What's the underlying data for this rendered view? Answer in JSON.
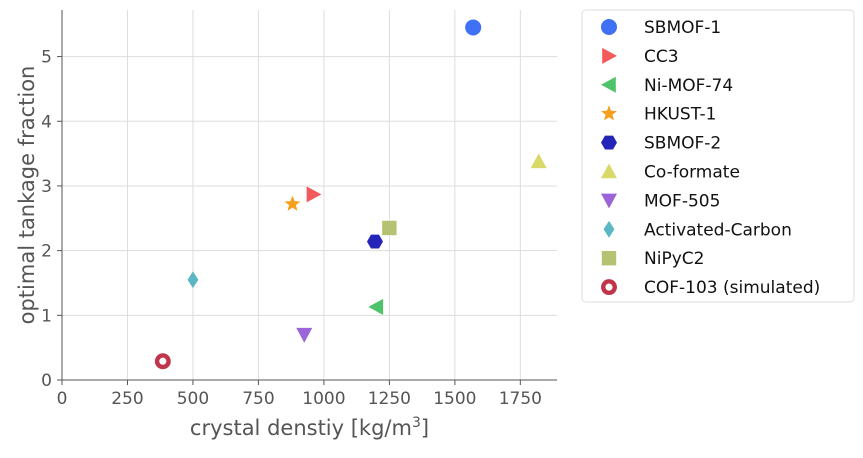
{
  "chart_data": {
    "type": "scatter",
    "title": "",
    "xlabel": "crystal denstiy [kg/m",
    "xlabel_sup": "3",
    "xlabel_end": "]",
    "ylabel": "optimal tankage fraction",
    "xlim": [
      0,
      1890
    ],
    "ylim": [
      0,
      5.72
    ],
    "xticks": [
      0,
      250,
      500,
      750,
      1000,
      1250,
      1500,
      1750
    ],
    "yticks": [
      0,
      1,
      2,
      3,
      4,
      5
    ],
    "xtick_labels": [
      "0",
      "250",
      "500",
      "750",
      "1000",
      "1250",
      "1500",
      "1750"
    ],
    "ytick_labels": [
      "0",
      "1",
      "2",
      "3",
      "4",
      "5"
    ],
    "grid": true,
    "legend_position": "outside-right",
    "series": [
      {
        "name": "SBMOF-1",
        "x": 1570,
        "y": 5.45,
        "marker": "circle",
        "color": "#4070f4"
      },
      {
        "name": "CC3",
        "x": 960,
        "y": 2.87,
        "marker": "triangle-right",
        "color": "#f25b5b"
      },
      {
        "name": "Ni-MOF-74",
        "x": 1200,
        "y": 1.13,
        "marker": "triangle-left",
        "color": "#4fc36a"
      },
      {
        "name": "HKUST-1",
        "x": 880,
        "y": 2.72,
        "marker": "star",
        "color": "#f7a01e"
      },
      {
        "name": "SBMOF-2",
        "x": 1195,
        "y": 2.14,
        "marker": "hexagon",
        "color": "#2424b8"
      },
      {
        "name": "Co-formate",
        "x": 1820,
        "y": 3.38,
        "marker": "triangle-up",
        "color": "#d9d96a"
      },
      {
        "name": "MOF-505",
        "x": 925,
        "y": 0.7,
        "marker": "triangle-down",
        "color": "#9b65d9"
      },
      {
        "name": "Activated-Carbon",
        "x": 500,
        "y": 1.55,
        "marker": "diamond",
        "color": "#5bb8c2"
      },
      {
        "name": "NiPyC2",
        "x": 1250,
        "y": 2.35,
        "marker": "square",
        "color": "#b5c271"
      },
      {
        "name": "COF-103 (simulated)",
        "x": 385,
        "y": 0.29,
        "marker": "ring",
        "color": "#c0354a"
      }
    ]
  }
}
